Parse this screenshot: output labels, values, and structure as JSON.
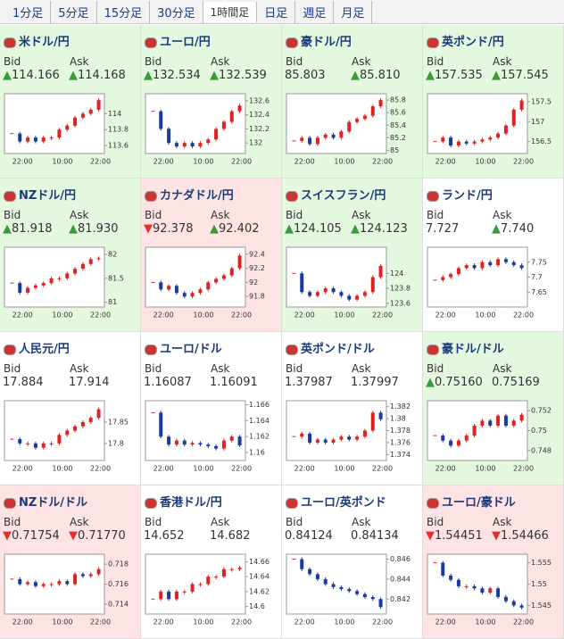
{
  "tabs": [
    "1分足",
    "5分足",
    "15分足",
    "30分足",
    "1時間足",
    "日足",
    "週足",
    "月足"
  ],
  "active_tab": 4,
  "bid_label": "Bid",
  "ask_label": "Ask",
  "panels": [
    {
      "name": "米ドル/円",
      "tone": "up",
      "bid_dir": "▲",
      "bid": "114.166",
      "ask_dir": "▲",
      "ask": "114.168",
      "chart": {
        "ylim": [
          113.5,
          114.25
        ],
        "yticks": [
          114,
          113.8,
          113.6
        ],
        "xticks": [
          "22:00",
          "10:00",
          "22:00"
        ],
        "close": [
          113.75,
          113.65,
          113.7,
          113.65,
          113.7,
          113.7,
          113.8,
          113.85,
          113.95,
          114.0,
          114.05,
          114.17
        ]
      }
    },
    {
      "name": "ユーロ/円",
      "tone": "up",
      "bid_dir": "▲",
      "bid": "132.534",
      "ask_dir": "▲",
      "ask": "132.539",
      "chart": {
        "ylim": [
          131.85,
          132.7
        ],
        "yticks": [
          132.6,
          132.4,
          132.2,
          132
        ],
        "xticks": [
          "22:00",
          "10:00",
          "22:00"
        ],
        "close": [
          132.45,
          132.2,
          132.0,
          131.95,
          132.0,
          131.95,
          132.0,
          132.05,
          132.2,
          132.3,
          132.45,
          132.53
        ]
      }
    },
    {
      "name": "豪ドル/円",
      "tone": "up",
      "bid": "85.803",
      "ask_dir": "▲",
      "ask": "85.810",
      "chart": {
        "ylim": [
          84.95,
          85.9
        ],
        "yticks": [
          85.8,
          85.6,
          85.4,
          85.2,
          85
        ],
        "xticks": [
          "22:00",
          "10:00",
          "22:00"
        ],
        "close": [
          85.15,
          85.2,
          85.1,
          85.2,
          85.25,
          85.2,
          85.3,
          85.45,
          85.5,
          85.55,
          85.7,
          85.8
        ]
      }
    },
    {
      "name": "英ポンド/円",
      "tone": "up",
      "bid_dir": "▲",
      "bid": "157.535",
      "ask_dir": "▲",
      "ask": "157.545",
      "chart": {
        "ylim": [
          156.2,
          157.7
        ],
        "yticks": [
          157.5,
          157,
          156.5
        ],
        "xticks": [
          "22:00",
          "10:00",
          "22:00"
        ],
        "close": [
          156.5,
          156.6,
          156.4,
          156.5,
          156.45,
          156.5,
          156.55,
          156.6,
          156.7,
          156.9,
          157.3,
          157.53
        ]
      }
    },
    {
      "name": "NZドル/円",
      "tone": "up",
      "bid_dir": "▲",
      "bid": "81.918",
      "ask_dir": "▲",
      "ask": "81.930",
      "chart": {
        "ylim": [
          80.9,
          82.15
        ],
        "yticks": [
          82,
          81.5,
          81
        ],
        "xticks": [
          "22:00",
          "10:00",
          "22:00"
        ],
        "close": [
          81.4,
          81.2,
          81.3,
          81.35,
          81.4,
          81.5,
          81.5,
          81.6,
          81.7,
          81.8,
          81.9,
          81.92
        ]
      }
    },
    {
      "name": "カナダドル/円",
      "tone": "down",
      "bid_dir": "▼",
      "bid": "92.378",
      "ask_dir": "▲",
      "ask": "92.402",
      "chart": {
        "ylim": [
          91.65,
          92.5
        ],
        "yticks": [
          92.4,
          92.2,
          92,
          91.8
        ],
        "xticks": [
          "22:00",
          "10:00",
          "22:00"
        ],
        "close": [
          92.0,
          91.9,
          91.95,
          91.85,
          91.8,
          91.85,
          91.9,
          92.0,
          92.05,
          92.1,
          92.2,
          92.38
        ]
      }
    },
    {
      "name": "スイスフラン/円",
      "tone": "up",
      "bid_dir": "▲",
      "bid": "124.105",
      "ask_dir": "▲",
      "ask": "124.123",
      "chart": {
        "ylim": [
          123.55,
          124.35
        ],
        "yticks": [
          124,
          123.8,
          123.6
        ],
        "xticks": [
          "22:00",
          "10:00",
          "22:00"
        ],
        "close": [
          124.0,
          123.75,
          123.7,
          123.75,
          123.8,
          123.75,
          123.7,
          123.65,
          123.7,
          123.75,
          123.95,
          124.1
        ]
      }
    },
    {
      "name": "ランド/円",
      "tone": "flat",
      "bid": "7.727",
      "ask_dir": "▲",
      "ask": "7.740",
      "chart": {
        "ylim": [
          7.6,
          7.8
        ],
        "yticks": [
          7.75,
          7.7,
          7.65
        ],
        "xticks": [
          "22:00",
          "10:00",
          "22:00"
        ],
        "close": [
          7.69,
          7.7,
          7.71,
          7.73,
          7.74,
          7.73,
          7.75,
          7.74,
          7.76,
          7.75,
          7.74,
          7.73
        ]
      }
    },
    {
      "name": "人民元/円",
      "tone": "flat",
      "bid": "17.884",
      "ask": "17.914",
      "chart": {
        "ylim": [
          17.76,
          17.9
        ],
        "yticks": [
          17.85,
          17.8
        ],
        "xticks": [
          "22:00",
          "10:00",
          "22:00"
        ],
        "close": [
          17.81,
          17.8,
          17.8,
          17.79,
          17.8,
          17.8,
          17.82,
          17.83,
          17.84,
          17.85,
          17.86,
          17.88
        ]
      }
    },
    {
      "name": "ユーロ/ドル",
      "tone": "flat",
      "bid": "1.16087",
      "ask": "1.16091",
      "chart": {
        "ylim": [
          1.159,
          1.1665
        ],
        "yticks": [
          1.166,
          1.164,
          1.162,
          1.16
        ],
        "xticks": [
          "22:00",
          "10:00",
          "22:00"
        ],
        "close": [
          1.165,
          1.162,
          1.161,
          1.1615,
          1.161,
          1.1612,
          1.161,
          1.1608,
          1.1605,
          1.1615,
          1.162,
          1.1609
        ]
      }
    },
    {
      "name": "英ポンド/ドル",
      "tone": "flat",
      "bid": "1.37987",
      "ask": "1.37997",
      "chart": {
        "ylim": [
          1.373,
          1.383
        ],
        "yticks": [
          1.382,
          1.38,
          1.378,
          1.376,
          1.374
        ],
        "xticks": [
          "22:00",
          "10:00",
          "22:00"
        ],
        "close": [
          1.377,
          1.3775,
          1.376,
          1.3765,
          1.376,
          1.3765,
          1.377,
          1.3765,
          1.377,
          1.378,
          1.381,
          1.3799
        ]
      }
    },
    {
      "name": "豪ドル/ドル",
      "tone": "up",
      "bid_dir": "▲",
      "bid": "0.75160",
      "ask": "0.75169",
      "chart": {
        "ylim": [
          0.747,
          0.753
        ],
        "yticks": [
          0.752,
          0.75,
          0.748
        ],
        "xticks": [
          "22:00",
          "10:00",
          "22:00"
        ],
        "close": [
          0.7495,
          0.749,
          0.7485,
          0.749,
          0.7495,
          0.7505,
          0.751,
          0.7505,
          0.7515,
          0.7505,
          0.751,
          0.7516
        ]
      }
    },
    {
      "name": "NZドル/ドル",
      "tone": "down",
      "bid_dir": "▼",
      "bid": "0.71754",
      "ask_dir": "▼",
      "ask": "0.71770",
      "chart": {
        "ylim": [
          0.713,
          0.719
        ],
        "yticks": [
          0.718,
          0.716,
          0.714
        ],
        "xticks": [
          "22:00",
          "10:00",
          "22:00"
        ],
        "close": [
          0.7165,
          0.716,
          0.7162,
          0.7158,
          0.716,
          0.716,
          0.7163,
          0.716,
          0.717,
          0.7168,
          0.717,
          0.7175
        ]
      }
    },
    {
      "name": "香港ドル/円",
      "tone": "flat",
      "bid": "14.652",
      "ask": "14.682",
      "chart": {
        "ylim": [
          14.59,
          14.67
        ],
        "yticks": [
          14.66,
          14.64,
          14.62,
          14.6
        ],
        "xticks": [
          "22:00",
          "10:00",
          "22:00"
        ],
        "close": [
          14.61,
          14.62,
          14.61,
          14.62,
          14.62,
          14.63,
          14.63,
          14.64,
          14.64,
          14.65,
          14.65,
          14.652
        ]
      }
    },
    {
      "name": "ユーロ/英ポンド",
      "tone": "flat",
      "bid": "0.84124",
      "ask": "0.84134",
      "chart": {
        "ylim": [
          0.8405,
          0.8465
        ],
        "yticks": [
          0.846,
          0.844,
          0.842
        ],
        "xticks": [
          "22:00",
          "10:00",
          "22:00"
        ],
        "close": [
          0.846,
          0.845,
          0.8445,
          0.844,
          0.8435,
          0.8432,
          0.843,
          0.8428,
          0.8425,
          0.8422,
          0.842,
          0.8412
        ]
      }
    },
    {
      "name": "ユーロ/豪ドル",
      "tone": "down",
      "bid_dir": "▼",
      "bid": "1.54451",
      "ask_dir": "▼",
      "ask": "1.54466",
      "chart": {
        "ylim": [
          1.543,
          1.557
        ],
        "yticks": [
          1.555,
          1.55,
          1.545
        ],
        "xticks": [
          "22:00",
          "10:00",
          "22:00"
        ],
        "close": [
          1.555,
          1.552,
          1.551,
          1.5495,
          1.5495,
          1.549,
          1.548,
          1.549,
          1.547,
          1.546,
          1.545,
          1.5445
        ]
      }
    }
  ]
}
